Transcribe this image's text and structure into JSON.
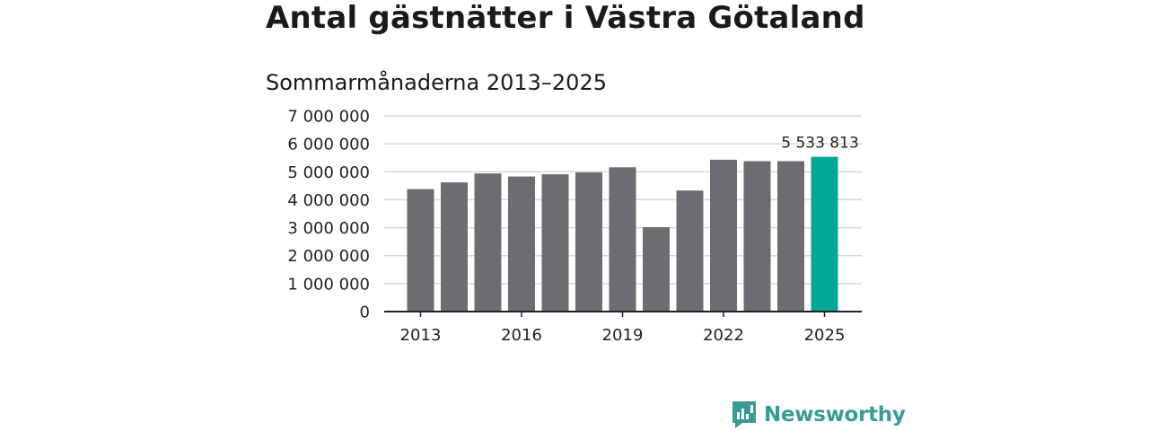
{
  "title": "Antal gästnätter i Västra Götaland",
  "subtitle": "Sommarmånaderna 2013–2025",
  "brand": {
    "name": "Newsworthy",
    "icon": "newsworthy-logo-icon",
    "color": "#3a9b94"
  },
  "chart_data": {
    "type": "bar",
    "title": "Antal gästnätter i Västra Götaland",
    "subtitle": "Sommarmånaderna 2013–2025",
    "xlabel": "",
    "ylabel": "",
    "categories": [
      "2013",
      "2014",
      "2015",
      "2016",
      "2017",
      "2018",
      "2019",
      "2020",
      "2021",
      "2022",
      "2023",
      "2024",
      "2025"
    ],
    "values": [
      4380000,
      4620000,
      4940000,
      4830000,
      4910000,
      4980000,
      5160000,
      3020000,
      4330000,
      5430000,
      5380000,
      5380000,
      5533813
    ],
    "ylim": [
      0,
      7000000
    ],
    "yticks": [
      0,
      1000000,
      2000000,
      3000000,
      4000000,
      5000000,
      6000000,
      7000000
    ],
    "ytick_labels": [
      "0",
      "1 000 000",
      "2 000 000",
      "3 000 000",
      "4 000 000",
      "5 000 000",
      "6 000 000",
      "7 000 000"
    ],
    "xtick_labels": [
      "2013",
      "2016",
      "2019",
      "2022",
      "2025"
    ],
    "highlight_index": 12,
    "highlight_label": "5 533 813",
    "colors": {
      "bar": "#6d6c71",
      "highlight": "#00a896",
      "grid": "#d9d9d9",
      "axis": "#222222"
    },
    "grid": true,
    "legend": "none"
  }
}
